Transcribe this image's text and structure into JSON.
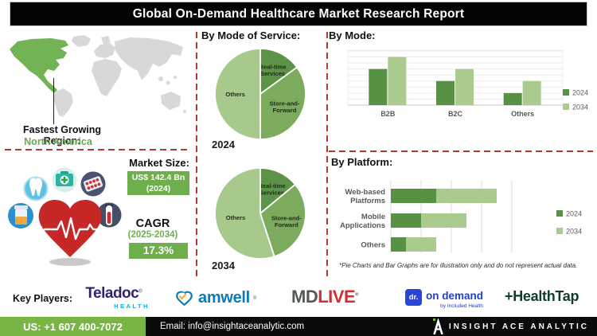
{
  "header": {
    "title": "Global On-Demand Healthcare Market Research Report"
  },
  "map": {
    "region_label": "Fastest Growing Region:",
    "region_value": "North America"
  },
  "market": {
    "size_label": "Market Size:",
    "size_value": "US$ 142.4 Bn",
    "size_year": "(2024)",
    "cagr_label": "CAGR",
    "cagr_period": "(2025-2034)",
    "cagr_value": "17.3%"
  },
  "chart_data": [
    {
      "type": "pie",
      "section_title": "By Mode of Service:",
      "year_label": "2024",
      "slices": [
        {
          "label": "Real-time Services",
          "lines": [
            "Real-time",
            "Services"
          ],
          "value": 15,
          "color": "#5c9348"
        },
        {
          "label": "Store-and-Forward",
          "lines": [
            "Store-and-",
            "Forward"
          ],
          "value": 35,
          "color": "#7cab5e"
        },
        {
          "label": "Others",
          "lines": [
            "Others"
          ],
          "value": 50,
          "color": "#a7c98c"
        }
      ]
    },
    {
      "type": "pie",
      "year_label": "2034",
      "slices": [
        {
          "label": "Real-time Services",
          "lines": [
            "Real-time",
            "Services"
          ],
          "value": 14,
          "color": "#5c9348"
        },
        {
          "label": "Store-and-Forward",
          "lines": [
            "Store-and-",
            "Forward"
          ],
          "value": 31,
          "color": "#7cab5e"
        },
        {
          "label": "Others",
          "lines": [
            "Others"
          ],
          "value": 55,
          "color": "#a7c98c"
        }
      ]
    },
    {
      "type": "bar",
      "title": "By Mode:",
      "categories": [
        "B2B",
        "B2C",
        "Others"
      ],
      "series": [
        {
          "name": "2024",
          "color": "#579144",
          "values": [
            6,
            4,
            2
          ]
        },
        {
          "name": "2034",
          "color": "#abcb8e",
          "values": [
            8,
            6,
            4
          ]
        }
      ],
      "ylim": [
        0,
        9
      ],
      "grid": true,
      "legend_position": "right",
      "unit": "illustrative"
    },
    {
      "type": "stacked-bar-horizontal",
      "title": "By Platform:",
      "categories": [
        "Web-based Platforms",
        "Mobile Applications",
        "Others"
      ],
      "category_lines": [
        [
          "Web-based",
          "Platforms"
        ],
        [
          "Mobile",
          "Applications"
        ],
        [
          "Others"
        ]
      ],
      "series": [
        {
          "name": "2024",
          "color": "#579144",
          "values": [
            1.5,
            1.0,
            0.5
          ]
        },
        {
          "name": "2034",
          "color": "#abcb8e",
          "values": [
            2.0,
            1.5,
            1.0
          ]
        }
      ],
      "xlim": [
        0,
        4
      ],
      "grid": true,
      "legend_position": "right",
      "unit": "illustrative"
    }
  ],
  "disclaimer": "*Pie Charts and Bar Graphs are for illustration only and do not represent actual data.",
  "key_players": {
    "label": "Key Players:",
    "teladoc": {
      "main": "Teladoc",
      "reg": "®",
      "sub": "HEALTH"
    },
    "amwell": {
      "main": "amwell",
      "reg": "®"
    },
    "mdlive": {
      "md": "MD",
      "live": "LIVE",
      "reg": "®"
    },
    "doctor_on_demand": {
      "icon_text": "dr.",
      "main": "on demand",
      "sub": "by Included Health"
    },
    "healthtap": {
      "plus": "+",
      "main": "HealthTap"
    }
  },
  "footer": {
    "phone": "US: +1 607 400-7072",
    "email": "Email: info@insightaceanalytic.com",
    "brand": "INSIGHT ACE ANALYTIC"
  },
  "colors": {
    "accent_green": "#6fae4c",
    "dark_green": "#579144",
    "mid_green": "#7cab5e",
    "light_green": "#abcb8e",
    "map_green": "#72b356",
    "map_gray": "#d8d8d8",
    "dashed_red": "#b23a31",
    "heart_red": "#c62828",
    "banner_bg": "#050505",
    "footer_green": "#79b544",
    "footer_black": "#0b0b0b"
  }
}
